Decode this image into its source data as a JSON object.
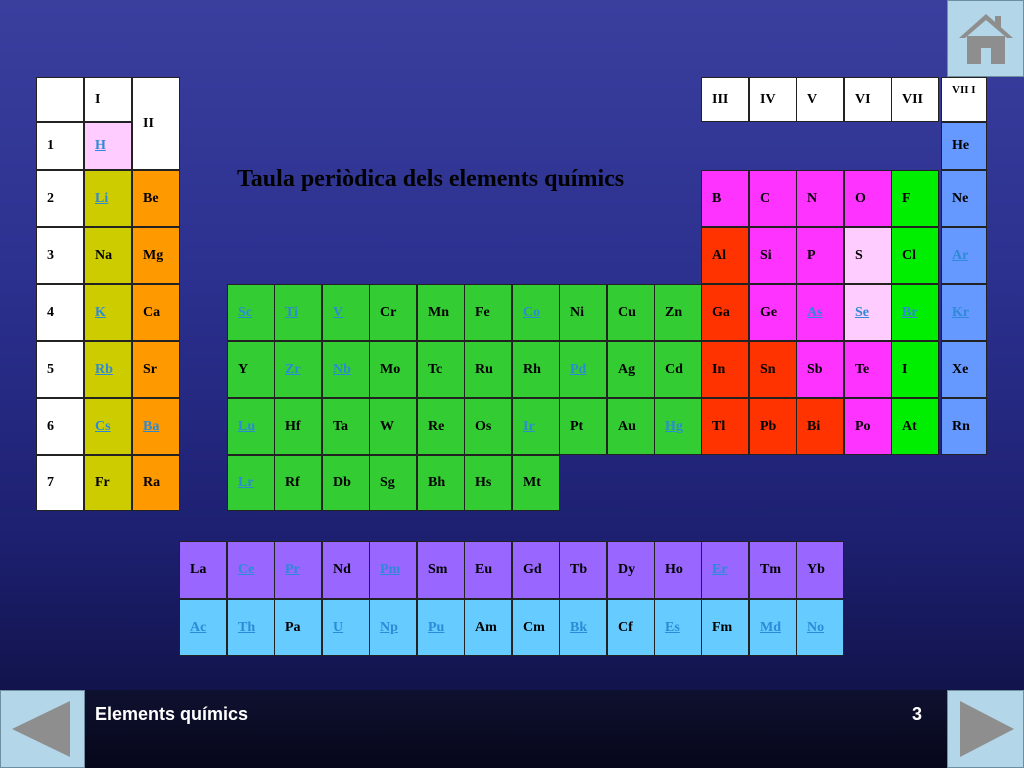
{
  "title": "Taula periòdica dels elements químics",
  "footer": {
    "label": "Elements químics",
    "page": "3"
  },
  "colors": {
    "header": "#ffffff",
    "alkali": "#cccc00",
    "alkaline": "#ff9900",
    "hydrogen": "#ffccff",
    "transition": "#33cc33",
    "boron": "#ff3300",
    "carbon": "#ff33ff",
    "chalcogen": "#ffccff",
    "halogen": "#00ee00",
    "noble": "#6699ff",
    "lanthanide": "#9966ff",
    "actinide": "#66ccff"
  },
  "icons": {
    "home": "home-icon",
    "prev": "arrow-left-icon",
    "next": "arrow-right-icon"
  },
  "groups_left": [
    "I",
    "II"
  ],
  "groups_right": [
    "III",
    "IV",
    "V",
    "VI",
    "VII",
    "VII I"
  ],
  "periods": [
    "1",
    "2",
    "3",
    "4",
    "5",
    "6",
    "7"
  ],
  "elements": [
    {
      "s": "H",
      "link": true,
      "c": "hydrogen",
      "col": "g1",
      "row": 1
    },
    {
      "s": "He",
      "link": false,
      "c": "noble",
      "col": "g18",
      "row": 1
    },
    {
      "s": "Li",
      "link": true,
      "c": "alkali",
      "col": "g1",
      "row": 2
    },
    {
      "s": "Be",
      "link": false,
      "c": "alkaline",
      "col": "g2",
      "row": 2
    },
    {
      "s": "B",
      "link": false,
      "c": "carbon",
      "col": "g13",
      "row": 2
    },
    {
      "s": "C",
      "link": false,
      "c": "carbon",
      "col": "g14",
      "row": 2
    },
    {
      "s": "N",
      "link": false,
      "c": "carbon",
      "col": "g15",
      "row": 2
    },
    {
      "s": "O",
      "link": false,
      "c": "carbon",
      "col": "g16",
      "row": 2
    },
    {
      "s": "F",
      "link": false,
      "c": "halogen",
      "col": "g17",
      "row": 2
    },
    {
      "s": "Ne",
      "link": false,
      "c": "noble",
      "col": "g18",
      "row": 2
    },
    {
      "s": "Na",
      "link": false,
      "c": "alkali",
      "col": "g1",
      "row": 3
    },
    {
      "s": "Mg",
      "link": false,
      "c": "alkaline",
      "col": "g2",
      "row": 3
    },
    {
      "s": "Al",
      "link": false,
      "c": "boron",
      "col": "g13",
      "row": 3
    },
    {
      "s": "Si",
      "link": false,
      "c": "carbon",
      "col": "g14",
      "row": 3
    },
    {
      "s": "P",
      "link": false,
      "c": "carbon",
      "col": "g15",
      "row": 3
    },
    {
      "s": "S",
      "link": false,
      "c": "chalcogen",
      "col": "g16",
      "row": 3
    },
    {
      "s": "Cl",
      "link": false,
      "c": "halogen",
      "col": "g17",
      "row": 3
    },
    {
      "s": "Ar",
      "link": true,
      "c": "noble",
      "col": "g18",
      "row": 3
    },
    {
      "s": "K",
      "link": true,
      "c": "alkali",
      "col": "g1",
      "row": 4
    },
    {
      "s": "Ca",
      "link": false,
      "c": "alkaline",
      "col": "g2",
      "row": 4
    },
    {
      "s": "Sc",
      "link": true,
      "c": "transition",
      "col": "g3",
      "row": 4
    },
    {
      "s": "Ti",
      "link": true,
      "c": "transition",
      "col": "g4",
      "row": 4
    },
    {
      "s": "V",
      "link": true,
      "c": "transition",
      "col": "g5",
      "row": 4
    },
    {
      "s": "Cr",
      "link": false,
      "c": "transition",
      "col": "g6",
      "row": 4
    },
    {
      "s": "Mn",
      "link": false,
      "c": "transition",
      "col": "g7",
      "row": 4
    },
    {
      "s": "Fe",
      "link": false,
      "c": "transition",
      "col": "g8",
      "row": 4
    },
    {
      "s": "Co",
      "link": true,
      "c": "transition",
      "col": "g9",
      "row": 4
    },
    {
      "s": "Ni",
      "link": false,
      "c": "transition",
      "col": "g10",
      "row": 4
    },
    {
      "s": "Cu",
      "link": false,
      "c": "transition",
      "col": "g11",
      "row": 4
    },
    {
      "s": "Zn",
      "link": false,
      "c": "transition",
      "col": "g12",
      "row": 4
    },
    {
      "s": "Ga",
      "link": false,
      "c": "boron",
      "col": "g13",
      "row": 4
    },
    {
      "s": "Ge",
      "link": false,
      "c": "carbon",
      "col": "g14",
      "row": 4
    },
    {
      "s": "As",
      "link": true,
      "c": "carbon",
      "col": "g15",
      "row": 4
    },
    {
      "s": "Se",
      "link": true,
      "c": "chalcogen",
      "col": "g16",
      "row": 4
    },
    {
      "s": "Br",
      "link": true,
      "c": "halogen",
      "col": "g17",
      "row": 4
    },
    {
      "s": "Kr",
      "link": true,
      "c": "noble",
      "col": "g18",
      "row": 4
    },
    {
      "s": "Rb",
      "link": true,
      "c": "alkali",
      "col": "g1",
      "row": 5
    },
    {
      "s": "Sr",
      "link": false,
      "c": "alkaline",
      "col": "g2",
      "row": 5
    },
    {
      "s": "Y",
      "link": false,
      "c": "transition",
      "col": "g3",
      "row": 5
    },
    {
      "s": "Zr",
      "link": true,
      "c": "transition",
      "col": "g4",
      "row": 5
    },
    {
      "s": "Nb",
      "link": true,
      "c": "transition",
      "col": "g5",
      "row": 5
    },
    {
      "s": "Mo",
      "link": false,
      "c": "transition",
      "col": "g6",
      "row": 5
    },
    {
      "s": "Tc",
      "link": false,
      "c": "transition",
      "col": "g7",
      "row": 5
    },
    {
      "s": "Ru",
      "link": false,
      "c": "transition",
      "col": "g8",
      "row": 5
    },
    {
      "s": "Rh",
      "link": false,
      "c": "transition",
      "col": "g9",
      "row": 5
    },
    {
      "s": "Pd",
      "link": true,
      "c": "transition",
      "col": "g10",
      "row": 5
    },
    {
      "s": "Ag",
      "link": false,
      "c": "transition",
      "col": "g11",
      "row": 5
    },
    {
      "s": "Cd",
      "link": false,
      "c": "transition",
      "col": "g12",
      "row": 5
    },
    {
      "s": "In",
      "link": false,
      "c": "boron",
      "col": "g13",
      "row": 5
    },
    {
      "s": "Sn",
      "link": false,
      "c": "boron",
      "col": "g14",
      "row": 5
    },
    {
      "s": "Sb",
      "link": false,
      "c": "carbon",
      "col": "g15",
      "row": 5
    },
    {
      "s": "Te",
      "link": false,
      "c": "carbon",
      "col": "g16",
      "row": 5
    },
    {
      "s": "I",
      "link": false,
      "c": "halogen",
      "col": "g17",
      "row": 5
    },
    {
      "s": "Xe",
      "link": false,
      "c": "noble",
      "col": "g18",
      "row": 5
    },
    {
      "s": "Cs",
      "link": true,
      "c": "alkali",
      "col": "g1",
      "row": 6
    },
    {
      "s": "Ba",
      "link": true,
      "c": "alkaline",
      "col": "g2",
      "row": 6
    },
    {
      "s": "Lu",
      "link": true,
      "c": "transition",
      "col": "g3",
      "row": 6
    },
    {
      "s": "Hf",
      "link": false,
      "c": "transition",
      "col": "g4",
      "row": 6
    },
    {
      "s": "Ta",
      "link": false,
      "c": "transition",
      "col": "g5",
      "row": 6
    },
    {
      "s": "W",
      "link": false,
      "c": "transition",
      "col": "g6",
      "row": 6
    },
    {
      "s": "Re",
      "link": false,
      "c": "transition",
      "col": "g7",
      "row": 6
    },
    {
      "s": "Os",
      "link": false,
      "c": "transition",
      "col": "g8",
      "row": 6
    },
    {
      "s": "Ir",
      "link": true,
      "c": "transition",
      "col": "g9",
      "row": 6
    },
    {
      "s": "Pt",
      "link": false,
      "c": "transition",
      "col": "g10",
      "row": 6
    },
    {
      "s": "Au",
      "link": false,
      "c": "transition",
      "col": "g11",
      "row": 6
    },
    {
      "s": "Hg",
      "link": true,
      "c": "transition",
      "col": "g12",
      "row": 6
    },
    {
      "s": "Tl",
      "link": false,
      "c": "boron",
      "col": "g13",
      "row": 6
    },
    {
      "s": "Pb",
      "link": false,
      "c": "boron",
      "col": "g14",
      "row": 6
    },
    {
      "s": "Bi",
      "link": false,
      "c": "boron",
      "col": "g15",
      "row": 6
    },
    {
      "s": "Po",
      "link": false,
      "c": "carbon",
      "col": "g16",
      "row": 6
    },
    {
      "s": "At",
      "link": false,
      "c": "halogen",
      "col": "g17",
      "row": 6
    },
    {
      "s": "Rn",
      "link": false,
      "c": "noble",
      "col": "g18",
      "row": 6
    },
    {
      "s": "Fr",
      "link": false,
      "c": "alkali",
      "col": "g1",
      "row": 7
    },
    {
      "s": "Ra",
      "link": false,
      "c": "alkaline",
      "col": "g2",
      "row": 7
    },
    {
      "s": "Lr",
      "link": true,
      "c": "transition",
      "col": "g3",
      "row": 7
    },
    {
      "s": "Rf",
      "link": false,
      "c": "transition",
      "col": "g4",
      "row": 7
    },
    {
      "s": "Db",
      "link": false,
      "c": "transition",
      "col": "g5",
      "row": 7
    },
    {
      "s": "Sg",
      "link": false,
      "c": "transition",
      "col": "g6",
      "row": 7
    },
    {
      "s": "Bh",
      "link": false,
      "c": "transition",
      "col": "g7",
      "row": 7
    },
    {
      "s": "Hs",
      "link": false,
      "c": "transition",
      "col": "g8",
      "row": 7
    },
    {
      "s": "Mt",
      "link": false,
      "c": "transition",
      "col": "g9",
      "row": 7
    }
  ],
  "lanthanides": [
    {
      "s": "La",
      "link": false
    },
    {
      "s": "Ce",
      "link": true
    },
    {
      "s": "Pr",
      "link": true
    },
    {
      "s": "Nd",
      "link": false
    },
    {
      "s": "Pm",
      "link": true
    },
    {
      "s": "Sm",
      "link": false
    },
    {
      "s": "Eu",
      "link": false
    },
    {
      "s": "Gd",
      "link": false
    },
    {
      "s": "Tb",
      "link": false
    },
    {
      "s": "Dy",
      "link": false
    },
    {
      "s": "Ho",
      "link": false
    },
    {
      "s": "Er",
      "link": true
    },
    {
      "s": "Tm",
      "link": false
    },
    {
      "s": "Yb",
      "link": false
    }
  ],
  "actinides": [
    {
      "s": "Ac",
      "link": true
    },
    {
      "s": "Th",
      "link": true
    },
    {
      "s": "Pa",
      "link": false
    },
    {
      "s": "U",
      "link": true
    },
    {
      "s": "Np",
      "link": true
    },
    {
      "s": "Pu",
      "link": true
    },
    {
      "s": "Am",
      "link": false
    },
    {
      "s": "Cm",
      "link": false
    },
    {
      "s": "Bk",
      "link": true
    },
    {
      "s": "Cf",
      "link": false
    },
    {
      "s": "Es",
      "link": true
    },
    {
      "s": "Fm",
      "link": false
    },
    {
      "s": "Md",
      "link": true
    },
    {
      "s": "No",
      "link": true
    }
  ]
}
